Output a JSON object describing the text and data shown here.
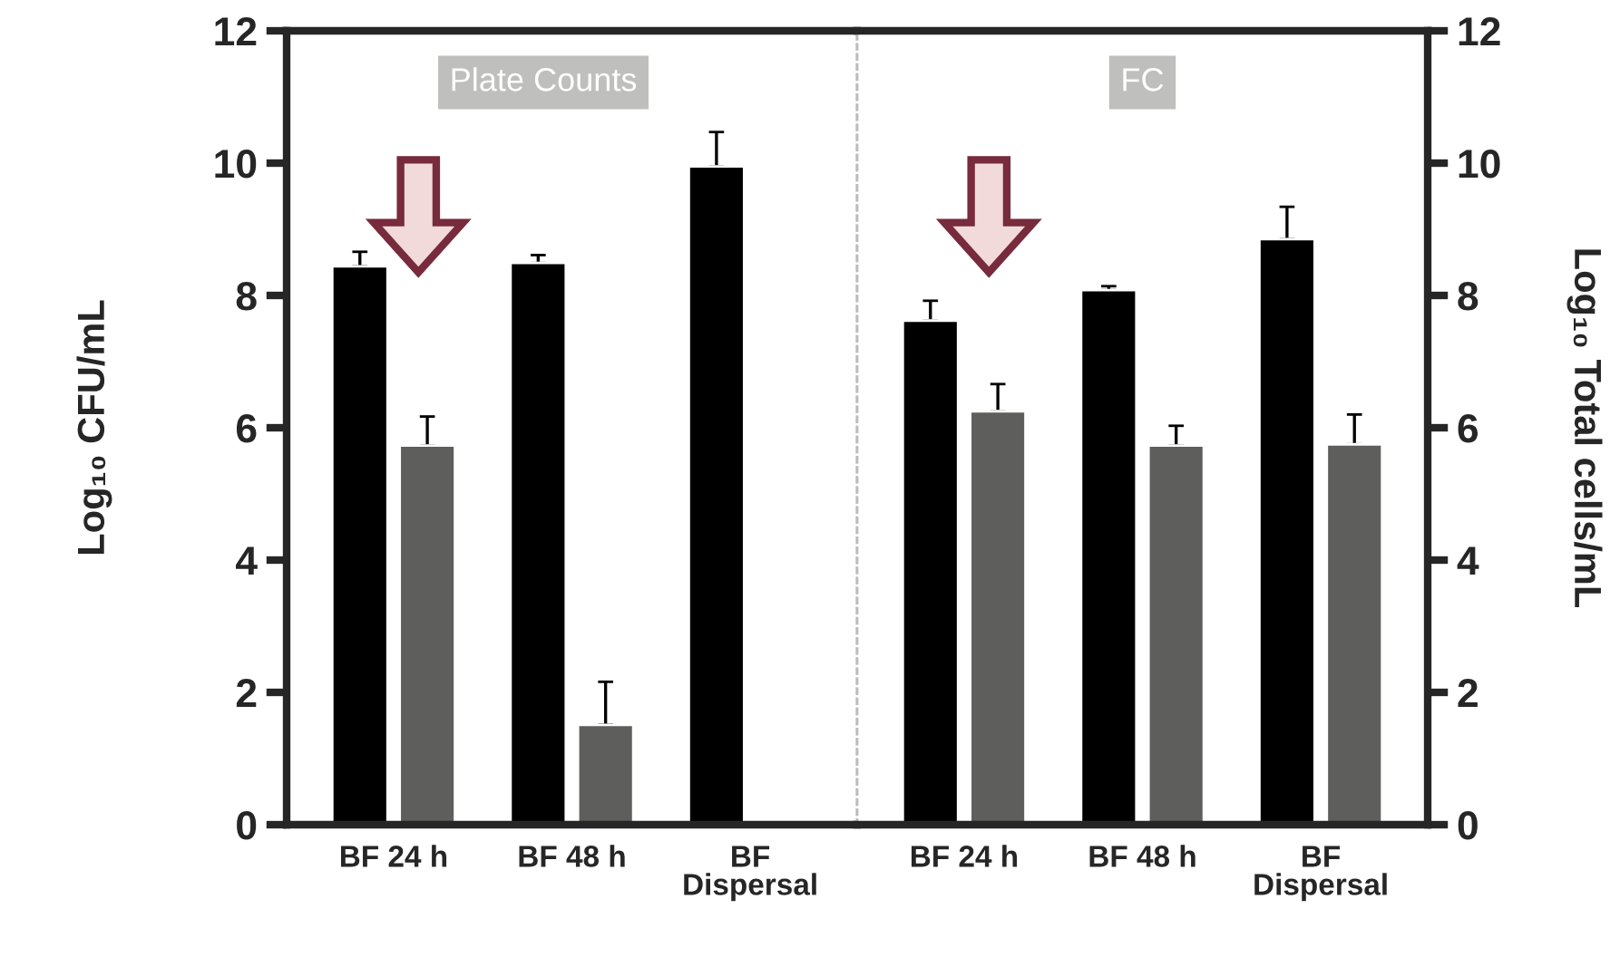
{
  "chart_data": [
    {
      "type": "bar",
      "ylabel": "Log₁₀ CFU/mL",
      "categories": [
        "BF 24 h",
        "BF 48 h",
        "BF\nDispersal"
      ],
      "ylim": [
        0,
        12
      ],
      "yticks": [
        0,
        2,
        4,
        6,
        8,
        10,
        12
      ],
      "annotations": [
        "Plate Counts"
      ],
      "series": [
        {
          "color": "#000000",
          "values": [
            8.44,
            8.49,
            9.95
          ],
          "errors": [
            [
              8.44,
              8.66
            ],
            [
              8.49,
              8.61
            ],
            [
              9.95,
              10.47
            ]
          ]
        },
        {
          "color": "#5e5e5c",
          "values": [
            5.73,
            1.51,
            null
          ],
          "errors": [
            [
              5.73,
              6.17
            ],
            [
              1.51,
              2.16
            ],
            null
          ]
        }
      ]
    },
    {
      "type": "bar",
      "y2label": "Log₁₀ Total cells/mL",
      "categories": [
        "BF 24 h",
        "BF 48 h",
        "BF\nDispersal"
      ],
      "y2lim": [
        0,
        12
      ],
      "y2ticks": [
        0,
        2,
        4,
        6,
        8,
        10,
        12
      ],
      "annotations": [
        "FC"
      ],
      "series": [
        {
          "color": "#000000",
          "axis": "y2",
          "values": [
            7.62,
            8.08,
            8.85
          ],
          "errors": [
            [
              7.62,
              7.92
            ],
            [
              8.08,
              8.14
            ],
            [
              8.85,
              9.34
            ]
          ]
        },
        {
          "color": "#5e5e5c",
          "axis": "y2",
          "values": [
            6.25,
            5.73,
            5.75
          ],
          "errors": [
            [
              6.25,
              6.66
            ],
            [
              5.73,
              6.03
            ],
            [
              5.75,
              6.2
            ]
          ]
        }
      ]
    }
  ]
}
